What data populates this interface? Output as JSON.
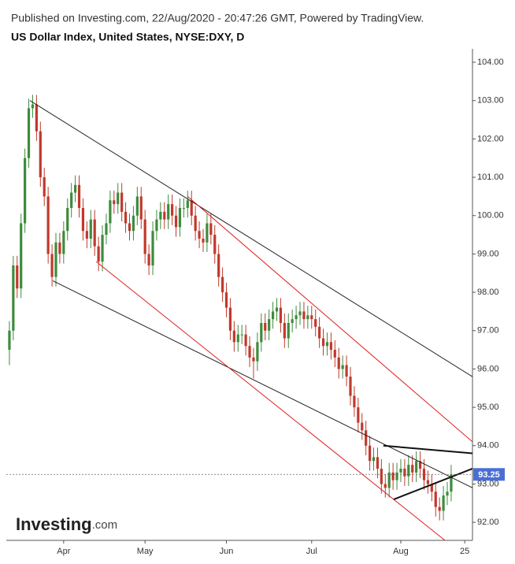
{
  "chart_data": {
    "type": "candlestick",
    "source": "Published on Investing.com, 22/Aug/2020 - 20:47:26 GMT, Powered by TradingView.",
    "title": "US Dollar Index, United States, NYSE:DXY, D",
    "logo": {
      "main": "Investing",
      "suffix": ".com"
    },
    "up_color": "#3d8b3d",
    "down_color": "#c0392b",
    "xlim": [
      -0.8,
      119.5
    ],
    "xticks": [
      {
        "value": 14,
        "label": "Apr"
      },
      {
        "value": 35,
        "label": "May"
      },
      {
        "value": 56,
        "label": "Jun"
      },
      {
        "value": 78,
        "label": "Jul"
      },
      {
        "value": 101,
        "label": "Aug"
      },
      {
        "value": 117.5,
        "label": "25"
      }
    ],
    "ylim": [
      91.53,
      104.35
    ],
    "yticks": [
      {
        "value": 92,
        "label": "92.00"
      },
      {
        "value": 93,
        "label": "93.00"
      },
      {
        "value": 94,
        "label": "94.00"
      },
      {
        "value": 95,
        "label": "95.00"
      },
      {
        "value": 96,
        "label": "96.00"
      },
      {
        "value": 97,
        "label": "97.00"
      },
      {
        "value": 98,
        "label": "98.00"
      },
      {
        "value": 99,
        "label": "99.00"
      },
      {
        "value": 100,
        "label": "100.00"
      },
      {
        "value": 101,
        "label": "101.00"
      },
      {
        "value": 102,
        "label": "102.00"
      },
      {
        "value": 103,
        "label": "103.00"
      },
      {
        "value": 104,
        "label": "104.00"
      }
    ],
    "last_price": 93.25,
    "last_price_color": "#4a6fd4",
    "open": [
      96.5,
      97.0,
      98.7,
      98.1,
      99.8,
      101.5,
      102.8,
      102.9,
      102.2,
      101.0,
      100.5,
      99.0,
      98.4,
      99.3,
      99.0,
      99.6,
      100.2,
      100.6,
      100.8,
      100.2,
      99.6,
      99.4,
      99.9,
      99.2,
      98.8,
      99.5,
      99.8,
      100.4,
      100.3,
      100.6,
      100.1,
      99.8,
      99.6,
      100.0,
      100.5,
      99.9,
      99.0,
      98.7,
      99.6,
      99.9,
      100.1,
      99.9,
      100.3,
      100.0,
      99.7,
      100.2,
      100.2,
      100.4,
      100.0,
      99.6,
      99.4,
      99.3,
      99.8,
      99.5,
      99.0,
      98.4,
      98.0,
      97.6,
      97.0,
      96.7,
      96.9,
      96.9,
      96.6,
      96.3,
      96.2,
      96.7,
      97.2,
      97.0,
      97.3,
      97.5,
      97.6,
      97.2,
      96.8,
      97.2,
      97.3,
      97.4,
      97.5,
      97.3,
      97.4,
      97.3,
      97.1,
      96.8,
      96.6,
      96.7,
      96.5,
      96.3,
      96.0,
      96.1,
      95.8,
      95.3,
      95.0,
      94.6,
      94.4,
      94.0,
      93.6,
      93.7,
      93.4,
      93.0,
      92.9,
      93.3,
      93.1,
      93.3,
      93.4,
      93.2,
      93.5,
      93.3,
      93.6,
      93.4,
      93.1,
      93.0,
      92.8,
      92.4,
      92.3,
      92.7,
      92.8
    ],
    "high": [
      97.25,
      98.95,
      98.95,
      100.05,
      101.75,
      103.05,
      103.15,
      103.15,
      102.45,
      101.25,
      100.75,
      99.25,
      99.55,
      99.55,
      99.85,
      100.45,
      100.85,
      101.05,
      101.05,
      100.45,
      99.85,
      100.15,
      100.15,
      99.45,
      99.75,
      100.05,
      100.65,
      100.65,
      100.85,
      100.85,
      100.35,
      100.05,
      100.25,
      100.75,
      100.75,
      100.15,
      99.25,
      99.85,
      100.15,
      100.35,
      100.35,
      100.55,
      100.55,
      100.25,
      100.45,
      100.45,
      100.65,
      100.65,
      100.25,
      99.85,
      99.65,
      100.05,
      100.05,
      99.75,
      99.25,
      98.65,
      98.25,
      97.85,
      97.25,
      97.15,
      97.15,
      97.15,
      96.85,
      96.55,
      96.95,
      97.45,
      97.45,
      97.55,
      97.75,
      97.85,
      97.85,
      97.45,
      97.45,
      97.55,
      97.65,
      97.75,
      97.75,
      97.65,
      97.65,
      97.55,
      97.35,
      97.05,
      96.95,
      96.95,
      96.75,
      96.55,
      96.35,
      96.35,
      96.05,
      95.55,
      95.25,
      94.85,
      94.65,
      94.25,
      93.95,
      93.95,
      93.65,
      93.25,
      93.55,
      93.55,
      93.55,
      93.65,
      93.65,
      93.75,
      93.75,
      93.85,
      93.85,
      93.65,
      93.35,
      93.25,
      93.05,
      92.65,
      92.95,
      93.05,
      93.5
    ],
    "low": [
      96.1,
      96.75,
      97.85,
      97.85,
      99.55,
      101.25,
      102.55,
      101.95,
      100.75,
      100.25,
      98.75,
      98.15,
      98.15,
      98.75,
      98.75,
      99.35,
      99.95,
      100.35,
      99.95,
      99.35,
      99.15,
      99.15,
      98.95,
      98.55,
      98.55,
      99.25,
      99.55,
      100.05,
      100.05,
      99.85,
      99.55,
      99.35,
      99.35,
      99.75,
      99.65,
      98.75,
      98.45,
      98.45,
      99.35,
      99.65,
      99.65,
      99.65,
      99.75,
      99.45,
      99.45,
      99.95,
      99.95,
      99.75,
      99.35,
      99.15,
      99.05,
      99.05,
      99.25,
      98.75,
      98.15,
      97.75,
      97.35,
      96.75,
      96.45,
      96.45,
      96.65,
      96.35,
      96.05,
      95.75,
      95.95,
      96.45,
      96.75,
      96.75,
      97.05,
      97.25,
      96.95,
      96.55,
      96.55,
      96.95,
      97.05,
      97.15,
      97.05,
      97.05,
      97.05,
      96.85,
      96.55,
      96.35,
      96.35,
      96.25,
      96.05,
      95.75,
      95.75,
      95.55,
      95.05,
      94.75,
      94.35,
      94.15,
      93.75,
      93.35,
      93.35,
      93.15,
      92.75,
      92.65,
      92.65,
      92.85,
      92.85,
      93.05,
      92.95,
      92.95,
      93.05,
      93.05,
      93.15,
      92.85,
      92.75,
      92.55,
      92.15,
      92.05,
      92.05,
      92.45,
      92.55
    ],
    "close": [
      97.0,
      98.7,
      98.1,
      99.8,
      101.5,
      102.8,
      102.9,
      102.2,
      101.0,
      100.5,
      99.0,
      98.4,
      99.3,
      99.0,
      99.6,
      100.2,
      100.6,
      100.8,
      100.2,
      99.6,
      99.4,
      99.9,
      99.2,
      98.8,
      99.5,
      99.8,
      100.4,
      100.3,
      100.6,
      100.1,
      99.8,
      99.6,
      100.0,
      100.5,
      99.9,
      99.0,
      98.7,
      99.6,
      99.9,
      100.1,
      99.9,
      100.3,
      100.0,
      99.7,
      100.2,
      100.2,
      100.4,
      100.0,
      99.6,
      99.4,
      99.3,
      99.8,
      99.5,
      99.0,
      98.4,
      98.0,
      97.6,
      97.0,
      96.7,
      96.9,
      96.9,
      96.6,
      96.3,
      96.2,
      96.7,
      97.2,
      97.0,
      97.3,
      97.5,
      97.6,
      97.2,
      96.8,
      97.2,
      97.3,
      97.4,
      97.5,
      97.3,
      97.4,
      97.3,
      97.1,
      96.8,
      96.6,
      96.7,
      96.5,
      96.3,
      96.0,
      96.1,
      95.8,
      95.3,
      95.0,
      94.6,
      94.4,
      94.0,
      93.6,
      93.7,
      93.4,
      93.0,
      92.9,
      93.3,
      93.1,
      93.3,
      93.4,
      93.2,
      93.5,
      93.3,
      93.6,
      93.4,
      93.1,
      93.0,
      92.8,
      92.4,
      92.3,
      92.7,
      92.8,
      93.25
    ],
    "trendlines": [
      {
        "color": "#222222",
        "width": 1,
        "x": [
          5.3,
          119.5
        ],
        "y": [
          103.0,
          95.8
        ]
      },
      {
        "color": "#222222",
        "width": 1,
        "x": [
          11.2,
          119.5
        ],
        "y": [
          98.3,
          92.9
        ]
      },
      {
        "color": "#e02020",
        "width": 1,
        "x": [
          46,
          119.5
        ],
        "y": [
          100.5,
          94.1
        ]
      },
      {
        "color": "#e02020",
        "width": 1,
        "x": [
          22.4,
          112.4
        ],
        "y": [
          98.8,
          91.53
        ]
      },
      {
        "color": "#111111",
        "width": 2,
        "x": [
          96.5,
          119.5
        ],
        "y": [
          94.0,
          93.8
        ]
      },
      {
        "color": "#111111",
        "width": 2,
        "x": [
          99.2,
          119.5
        ],
        "y": [
          92.6,
          93.4
        ]
      }
    ]
  }
}
